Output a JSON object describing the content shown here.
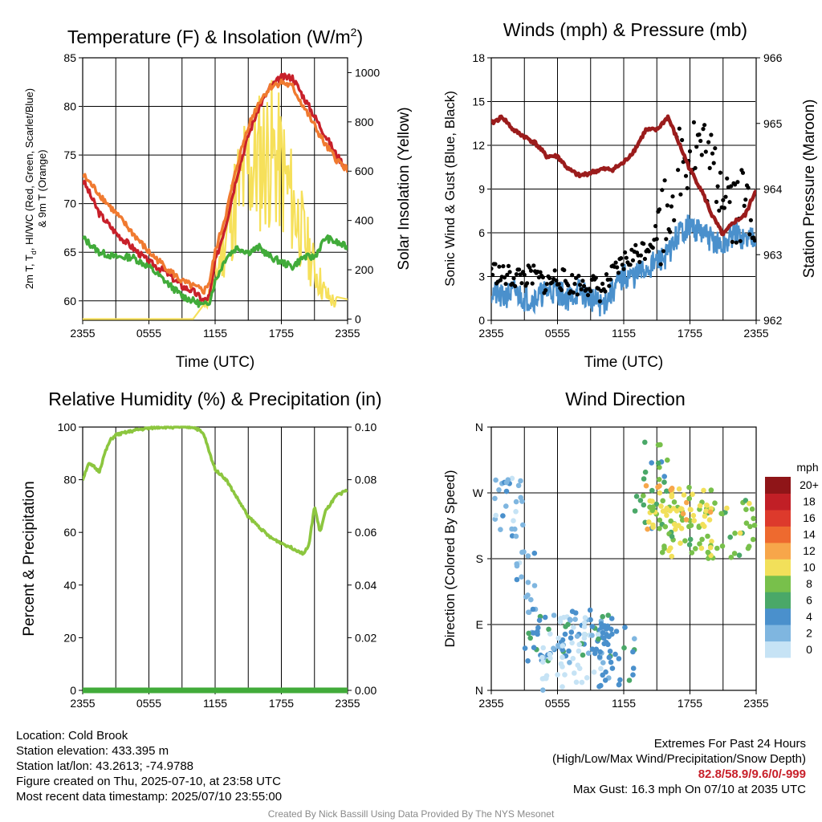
{
  "chart_data": [
    {
      "type": "line",
      "title_parts": {
        "main": "Temperature (F) & Insolation (W/m",
        "sup": "2",
        "end": ")"
      },
      "xlabel": "Time (UTC)",
      "ylabel_parts": {
        "a": "2m T, T",
        "sub": "d",
        "b": ", HI/WC (Red, Green, Scarlet/Blue)",
        "line2": "& 9m T (Orange)"
      },
      "y2label": "Solar Insolation (Yellow)",
      "x_ticks": [
        "2355",
        "0555",
        "1155",
        "1755",
        "2355"
      ],
      "ylim": [
        58,
        85
      ],
      "y_ticks": [
        "60",
        "65",
        "70",
        "75",
        "80",
        "85"
      ],
      "y2lim": [
        -5,
        1060
      ],
      "y2_ticks": [
        "0",
        "200",
        "400",
        "600",
        "800",
        "1000"
      ],
      "x_hours": [
        0,
        1.5,
        3,
        4.5,
        6,
        7.5,
        9,
        10,
        11,
        11.5,
        12,
        13,
        14,
        15,
        16,
        17,
        18,
        19,
        20,
        21,
        22,
        23,
        24
      ],
      "series": [
        {
          "color": "#c8202a",
          "values": [
            72.5,
            69,
            67,
            65.5,
            64,
            63,
            61.5,
            61,
            60,
            60.5,
            64,
            68,
            73,
            77,
            80,
            82,
            83,
            83,
            81,
            79,
            77,
            75,
            73.5
          ]
        },
        {
          "color": "#f07a30",
          "values": [
            73,
            71,
            69,
            67,
            65,
            63.5,
            62,
            61.5,
            61,
            62,
            65,
            69,
            74,
            78,
            80.5,
            82,
            82.5,
            82,
            80,
            78,
            76,
            74.5,
            73.5
          ]
        },
        {
          "color": "#41ab3a",
          "values": [
            66.5,
            65,
            64.5,
            64.5,
            63.5,
            62,
            60.5,
            60,
            59.5,
            60,
            62,
            64.5,
            65.5,
            65,
            65.5,
            64.5,
            64,
            63.5,
            64.5,
            64.5,
            66.5,
            66,
            65.5
          ]
        }
      ],
      "insolation": {
        "color": "#f6e05a",
        "hours": [
          0,
          2,
          4,
          6,
          8,
          10,
          11,
          12,
          13,
          14,
          15,
          16,
          17,
          18,
          19,
          20,
          21,
          22,
          23,
          24
        ],
        "values": [
          0,
          0,
          0,
          0,
          0,
          0,
          60,
          250,
          500,
          750,
          900,
          950,
          1000,
          900,
          700,
          500,
          300,
          150,
          90,
          80
        ]
      }
    },
    {
      "type": "line",
      "title": "Winds (mph) & Pressure (mb)",
      "xlabel": "Time (UTC)",
      "ylabel": "Sonic Wind & Gust (Blue, Black)",
      "y2label": "Station Pressure (Maroon)",
      "x_ticks": [
        "2355",
        "0555",
        "1155",
        "1755",
        "2355"
      ],
      "ylim": [
        0,
        18
      ],
      "y_ticks": [
        "0",
        "3",
        "6",
        "9",
        "12",
        "15",
        "18"
      ],
      "y2lim": [
        962,
        966
      ],
      "y2_ticks": [
        "962",
        "963",
        "964",
        "965",
        "966"
      ],
      "x_hours": [
        0,
        1,
        2,
        3,
        4,
        5,
        6,
        7,
        8,
        9,
        10,
        11,
        12,
        13,
        14,
        15,
        16,
        17,
        18,
        19,
        20,
        21,
        22,
        23,
        24
      ],
      "wind": {
        "color": "#4a90cc",
        "values": [
          2,
          1.5,
          2,
          1.5,
          1.5,
          2,
          2,
          1.5,
          2,
          1.5,
          1,
          2,
          3,
          3,
          3.5,
          4,
          4.5,
          6,
          6.5,
          6,
          5.5,
          5,
          6,
          5.5,
          6
        ]
      },
      "gust": {
        "color": "#000000",
        "values": [
          3.5,
          3,
          3,
          3,
          3,
          2.5,
          3,
          2.5,
          2.5,
          2.5,
          2,
          3,
          4,
          4.5,
          5,
          6,
          8,
          11,
          12,
          12,
          10,
          10,
          8,
          8,
          8
        ]
      },
      "pressure": {
        "color": "#9b1c1c",
        "values": [
          965,
          965.1,
          964.9,
          964.8,
          964.7,
          964.5,
          964.5,
          964.3,
          964.2,
          964.25,
          964.3,
          964.3,
          964.4,
          964.6,
          964.9,
          964.9,
          965.1,
          964.7,
          964.3,
          964,
          963.6,
          963.3,
          963.5,
          963.6,
          964
        ]
      }
    },
    {
      "type": "line",
      "title": "Relative Humidity (%) & Precipitation (in)",
      "xlabel": "",
      "ylabel": "Percent & Precipitation",
      "x_ticks": [
        "2355",
        "0555",
        "1155",
        "1755",
        "2355"
      ],
      "ylim": [
        0,
        100
      ],
      "y_ticks": [
        "0",
        "20",
        "40",
        "60",
        "80",
        "100"
      ],
      "y2lim": [
        0,
        0.1
      ],
      "y2_ticks": [
        "0.00",
        "0.02",
        "0.04",
        "0.06",
        "0.08",
        "0.10"
      ],
      "x_hours": [
        0,
        0.5,
        1,
        1.5,
        2,
        2.5,
        3,
        4,
        5,
        6,
        7,
        8,
        9,
        10,
        10.5,
        11,
        11.5,
        12,
        13,
        14,
        15,
        16,
        17,
        18,
        19,
        19.5,
        20,
        20.5,
        21,
        21.5,
        22,
        23,
        24
      ],
      "rh": {
        "color": "#8cc63f",
        "values": [
          80,
          86,
          85,
          83,
          90,
          95,
          97,
          98,
          99,
          99.5,
          100,
          100,
          100,
          100,
          99,
          97,
          90,
          84,
          80,
          73,
          66,
          62,
          58,
          56,
          54,
          53,
          52,
          55,
          70,
          60,
          68,
          74,
          76
        ]
      },
      "precip": {
        "color": "#41ab3a",
        "values": [
          0,
          0
        ]
      }
    },
    {
      "type": "scatter",
      "title": "Wind Direction",
      "xlabel": "",
      "ylabel": "Direction (Colored By Speed)",
      "x_ticks": [
        "2355",
        "0555",
        "1155",
        "1755",
        "2355"
      ],
      "y_ticks": [
        "N",
        "E",
        "S",
        "W",
        "N"
      ],
      "ylim": [
        0,
        360
      ],
      "colorbar": {
        "unit": "mph",
        "labels": [
          "0",
          "2",
          "4",
          "6",
          "8",
          "10",
          "12",
          "14",
          "16",
          "18",
          "20+"
        ],
        "colors": [
          "#c6e3f5",
          "#7fb6e0",
          "#4a90cc",
          "#4aa868",
          "#78c04b",
          "#f2e05a",
          "#f7a64a",
          "#ee6a2f",
          "#dd3a2c",
          "#c11f26",
          "#8f1518"
        ]
      },
      "clusters": [
        {
          "h": [
            0,
            3
          ],
          "d": [
            210,
            290
          ],
          "s": 1
        },
        {
          "h": [
            2,
            4
          ],
          "d": [
            100,
            190
          ],
          "s": 1
        },
        {
          "h": [
            3,
            11
          ],
          "d": [
            40,
            110
          ],
          "s": 2
        },
        {
          "h": [
            4,
            10
          ],
          "d": [
            0,
            110
          ],
          "s": 0
        },
        {
          "h": [
            9,
            13
          ],
          "d": [
            0,
            100
          ],
          "s": 2
        },
        {
          "h": [
            13,
            16
          ],
          "d": [
            220,
            340
          ],
          "s": 3
        },
        {
          "h": [
            15,
            24
          ],
          "d": [
            180,
            260
          ],
          "s": 4
        },
        {
          "h": [
            14,
            20
          ],
          "d": [
            220,
            280
          ],
          "s": 5
        }
      ]
    }
  ],
  "info": {
    "location": "Location: Cold Brook",
    "elevation": "Station elevation: 433.395 m",
    "latlon": "Station lat/lon: 43.2613; -74.9788",
    "created": "Figure created on Thu, 2025-07-10, at 23:58 UTC",
    "recent": "Most recent data timestamp: 2025/07/10 23:55:00"
  },
  "extremes": {
    "title": "Extremes For Past 24 Hours",
    "legend": "(High/Low/Max Wind/Precipitation/Snow Depth)",
    "values": "82.8/58.9/9.6/0/-999",
    "max_gust": "Max Gust: 16.3 mph On 07/10 at 2035 UTC"
  },
  "credit": "Created By Nick Bassill Using Data Provided By The NYS Mesonet"
}
